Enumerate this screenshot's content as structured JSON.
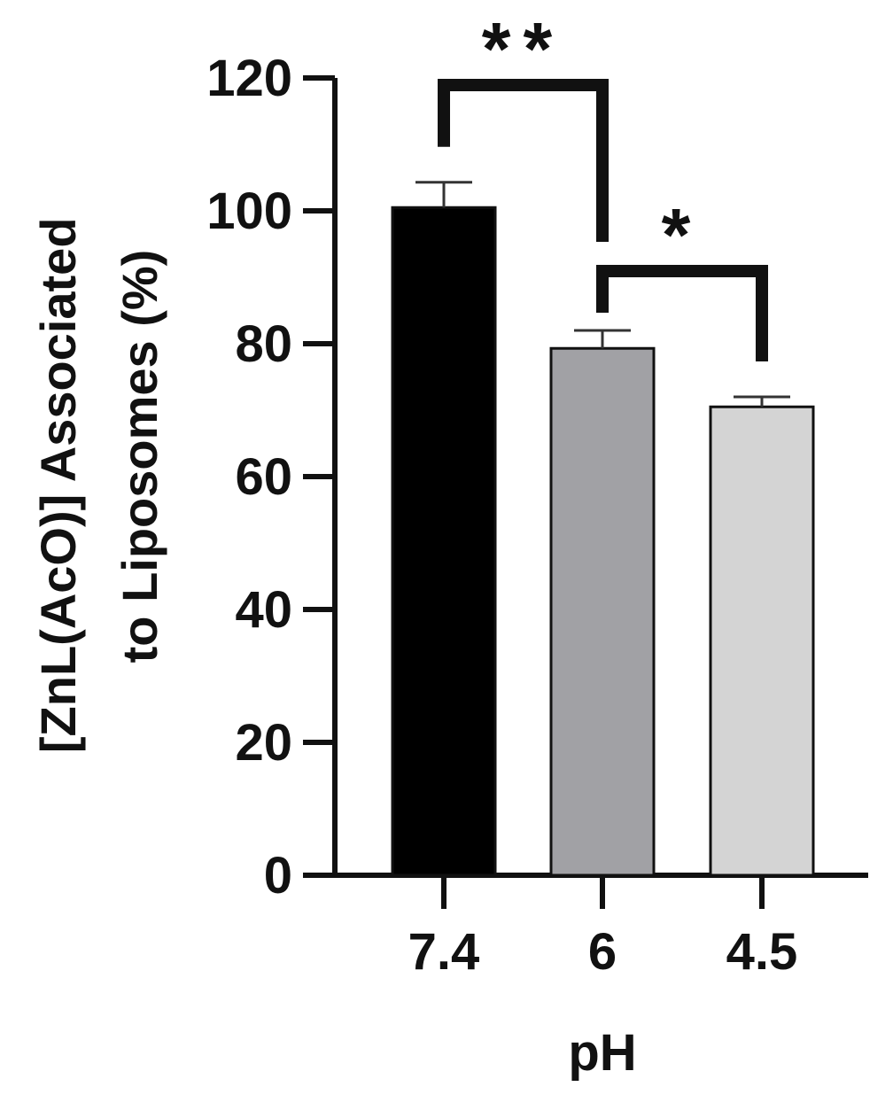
{
  "chart_data": {
    "type": "bar",
    "categories": [
      "7.4",
      "6",
      "4.5"
    ],
    "values": [
      100.5,
      79.3,
      70.5
    ],
    "errors": [
      3.8,
      2.7,
      1.5
    ],
    "colors": [
      "#000000",
      "#a1a1a5",
      "#d4d4d4"
    ],
    "xlabel": "pH",
    "ylabel_lines": [
      "[ZnL(AcO)] Associated",
      "to Liposomes (%)"
    ],
    "ylim": [
      0,
      120
    ],
    "yticks": [
      0,
      20,
      40,
      60,
      80,
      100,
      120
    ],
    "grid": false,
    "legend": "none",
    "significance": [
      {
        "from": "7.4",
        "to": "6",
        "label": "**",
        "level": 120
      },
      {
        "from": "6",
        "to": "4.5",
        "label": "*",
        "level": 92
      }
    ]
  }
}
